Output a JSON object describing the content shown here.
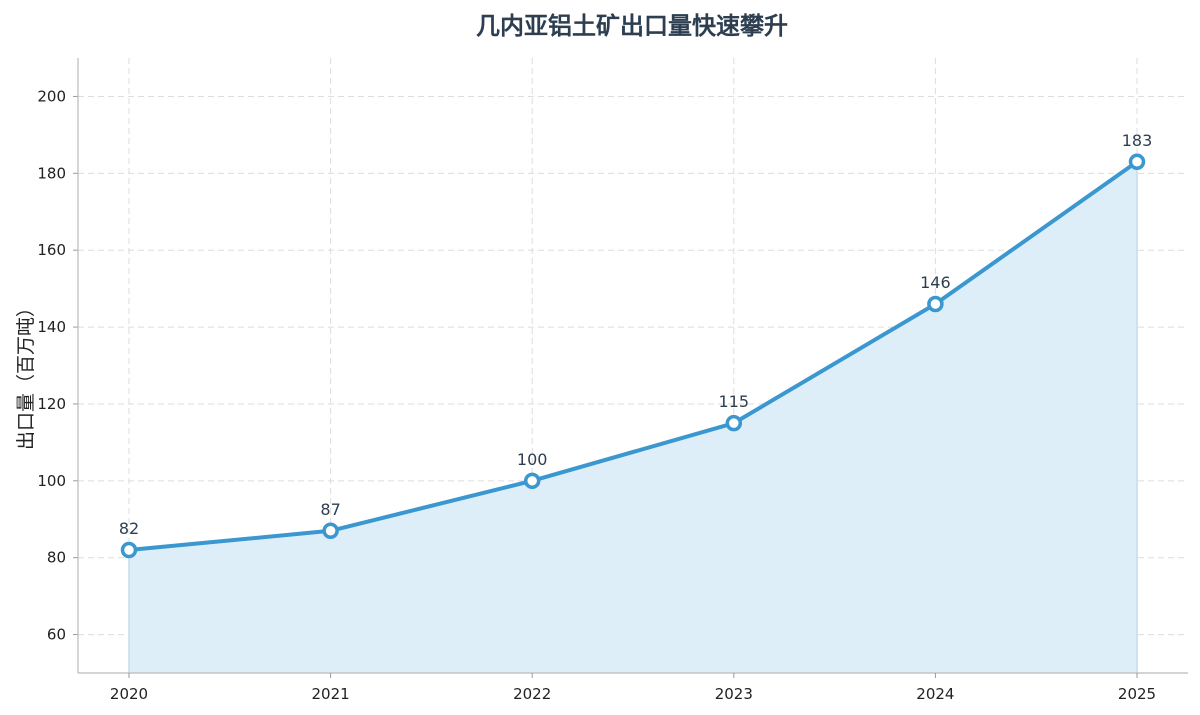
{
  "chart_data": {
    "type": "area",
    "title": "几内亚铝土矿出口量快速攀升",
    "xlabel": "",
    "ylabel": "出口量（百万吨）",
    "x": [
      "2020",
      "2021",
      "2022",
      "2023",
      "2024",
      "2025"
    ],
    "series": [
      {
        "values": [
          82,
          87,
          100,
          115,
          146,
          183
        ]
      }
    ],
    "data_labels": [
      "82",
      "87",
      "100",
      "115",
      "146",
      "183"
    ],
    "ylim": [
      50,
      210
    ],
    "yticks": [
      60,
      80,
      100,
      120,
      140,
      160,
      180,
      200
    ],
    "ytick_labels": [
      "60",
      "80",
      "100",
      "120",
      "140",
      "160",
      "180",
      "200"
    ],
    "grid": true,
    "colors": {
      "line": "#3a97d0",
      "fill": "#deeef9",
      "marker_fill": "#ffffff"
    }
  }
}
